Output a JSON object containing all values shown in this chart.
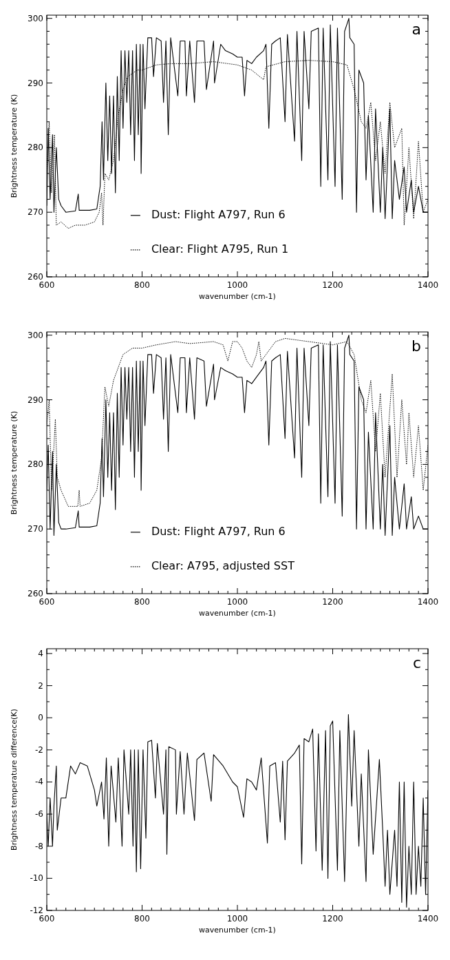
{
  "chart_data": [
    {
      "type": "line",
      "xlabel": "wavenumber (cm-1)",
      "ylabel": "Brightness temperature (K)",
      "annotations": [
        "a"
      ],
      "legend": "bottom",
      "xlim": [
        600,
        1400
      ],
      "ylim": [
        260,
        300.5
      ],
      "xticks": [
        600,
        {
          "value": 620,
          "label": null
        },
        {
          "value": 640,
          "label": null
        },
        {
          "value": 660,
          "label": null
        },
        {
          "value": 680,
          "label": null
        },
        {
          "value": 700,
          "label": null
        },
        {
          "value": 720,
          "label": null
        },
        {
          "value": 740,
          "label": null
        },
        {
          "value": 760,
          "label": null
        },
        {
          "value": 780,
          "label": null
        },
        800,
        {
          "value": 820,
          "label": null
        },
        {
          "value": 840,
          "label": null
        },
        {
          "value": 860,
          "label": null
        },
        {
          "value": 880,
          "label": null
        },
        {
          "value": 900,
          "label": null
        },
        {
          "value": 920,
          "label": null
        },
        {
          "value": 940,
          "label": null
        },
        {
          "value": 960,
          "label": null
        },
        {
          "value": 980,
          "label": null
        },
        1000,
        {
          "value": 1020,
          "label": null
        },
        {
          "value": 1040,
          "label": null
        },
        {
          "value": 1060,
          "label": null
        },
        {
          "value": 1080,
          "label": null
        },
        {
          "value": 1100,
          "label": null
        },
        {
          "value": 1120,
          "label": null
        },
        {
          "value": 1140,
          "label": null
        },
        {
          "value": 1160,
          "label": null
        },
        {
          "value": 1180,
          "label": null
        },
        1200,
        {
          "value": 1220,
          "label": null
        },
        {
          "value": 1240,
          "label": null
        },
        {
          "value": 1260,
          "label": null
        },
        {
          "value": 1280,
          "label": null
        },
        {
          "value": 1300,
          "label": null
        },
        {
          "value": 1320,
          "label": null
        },
        {
          "value": 1340,
          "label": null
        },
        {
          "value": 1360,
          "label": null
        },
        {
          "value": 1380,
          "label": null
        },
        1400
      ],
      "yticks": [
        260,
        {
          "value": 262,
          "label": null
        },
        {
          "value": 264,
          "label": null
        },
        {
          "value": 266,
          "label": null
        },
        {
          "value": 268,
          "label": null
        },
        270,
        {
          "value": 272,
          "label": null
        },
        {
          "value": 274,
          "label": null
        },
        {
          "value": 276,
          "label": null
        },
        {
          "value": 278,
          "label": null
        },
        280,
        {
          "value": 282,
          "label": null
        },
        {
          "value": 284,
          "label": null
        },
        {
          "value": 286,
          "label": null
        },
        {
          "value": 288,
          "label": null
        },
        290,
        {
          "value": 292,
          "label": null
        },
        {
          "value": 294,
          "label": null
        },
        {
          "value": 296,
          "label": null
        },
        {
          "value": 298,
          "label": null
        },
        300
      ],
      "series": [
        {
          "name": "Dust: Flight A797, Run 6",
          "color": "#000000",
          "line_style": "solid",
          "x": [
            600,
            603,
            607,
            612,
            615,
            620,
            625,
            630,
            640,
            660,
            666,
            668,
            690,
            705,
            712,
            716,
            719,
            724,
            728,
            732,
            736,
            740,
            744,
            748,
            752,
            756,
            760,
            764,
            768,
            772,
            776,
            780,
            784,
            788,
            792,
            796,
            798,
            802,
            806,
            812,
            820,
            824,
            830,
            840,
            845,
            850,
            855,
            860,
            875,
            880,
            890,
            893,
            900,
            910,
            915,
            930,
            935,
            950,
            952,
            965,
            975,
            990,
            1000,
            1010,
            1015,
            1020,
            1030,
            1040,
            1055,
            1060,
            1066,
            1072,
            1080,
            1090,
            1100,
            1105,
            1120,
            1125,
            1135,
            1140,
            1150,
            1155,
            1170,
            1175,
            1180,
            1190,
            1195,
            1205,
            1210,
            1220,
            1225,
            1234,
            1236,
            1245,
            1250,
            1255,
            1265,
            1270,
            1275,
            1285,
            1290,
            1300,
            1305,
            1310,
            1320,
            1325,
            1330,
            1340,
            1350,
            1355,
            1365,
            1370,
            1380,
            1390,
            1400
          ],
          "values": [
            271,
            283,
            272,
            282,
            270,
            280,
            272,
            271,
            270,
            270.2,
            272.8,
            270.3,
            270.3,
            270.5,
            274,
            284,
            275,
            290,
            278,
            288,
            276,
            288,
            273,
            291,
            278,
            295,
            283,
            295,
            287,
            295,
            282,
            295,
            278,
            296,
            282,
            296,
            276,
            296,
            286,
            297,
            297,
            291,
            297,
            296.5,
            287,
            296.5,
            282,
            297,
            288,
            296.5,
            296.5,
            288,
            296.5,
            287,
            296.5,
            296.5,
            289,
            296.5,
            290,
            296,
            295,
            294.5,
            294,
            294,
            288,
            293.5,
            293,
            294,
            295,
            296,
            283,
            296,
            296.5,
            297,
            284,
            297.5,
            281,
            298,
            278,
            298,
            286,
            298,
            298.5,
            274,
            298.5,
            275,
            299,
            274,
            298.5,
            272,
            298,
            300,
            297,
            296,
            270,
            292,
            290,
            275,
            285,
            270,
            286,
            270,
            280,
            269,
            286,
            269,
            278,
            272,
            277,
            270,
            275,
            270,
            274,
            270,
            270
          ]
        },
        {
          "name": "Clear: Flight A795, Run 1",
          "color": "#000000",
          "line_style": "dotted",
          "x": [
            600,
            605,
            610,
            616,
            620,
            630,
            645,
            660,
            680,
            700,
            710,
            715,
            718,
            722,
            730,
            740,
            750,
            760,
            770,
            790,
            800,
            830,
            860,
            900,
            950,
            980,
            1000,
            1030,
            1055,
            1060,
            1100,
            1150,
            1200,
            1230,
            1245,
            1260,
            1270,
            1280,
            1290,
            1300,
            1310,
            1320,
            1330,
            1345,
            1350,
            1360,
            1370,
            1380,
            1390,
            1400
          ],
          "values": [
            276,
            284,
            273,
            282,
            268,
            268.5,
            267.5,
            268,
            268,
            268.5,
            270,
            273,
            268,
            276,
            275,
            278,
            285,
            289,
            291,
            292,
            292,
            292.8,
            293,
            293,
            293.3,
            293,
            292.8,
            292,
            290.5,
            292.5,
            293.3,
            293.5,
            293.3,
            292.8,
            289,
            284,
            283,
            287,
            278,
            284,
            276,
            287,
            280,
            283,
            268,
            280,
            269,
            281,
            270,
            272
          ]
        }
      ]
    },
    {
      "type": "line",
      "xlabel": "wavenumber (cm-1)",
      "ylabel": "Brightness temperature (K)",
      "annotations": [
        "b"
      ],
      "legend": "bottom",
      "xlim": [
        600,
        1400
      ],
      "ylim": [
        260,
        300.5
      ],
      "xticks": [
        600,
        {
          "value": 620,
          "label": null
        },
        {
          "value": 640,
          "label": null
        },
        {
          "value": 660,
          "label": null
        },
        {
          "value": 680,
          "label": null
        },
        {
          "value": 700,
          "label": null
        },
        {
          "value": 720,
          "label": null
        },
        {
          "value": 740,
          "label": null
        },
        {
          "value": 760,
          "label": null
        },
        {
          "value": 780,
          "label": null
        },
        800,
        {
          "value": 820,
          "label": null
        },
        {
          "value": 840,
          "label": null
        },
        {
          "value": 860,
          "label": null
        },
        {
          "value": 880,
          "label": null
        },
        {
          "value": 900,
          "label": null
        },
        {
          "value": 920,
          "label": null
        },
        {
          "value": 940,
          "label": null
        },
        {
          "value": 960,
          "label": null
        },
        {
          "value": 980,
          "label": null
        },
        1000,
        {
          "value": 1020,
          "label": null
        },
        {
          "value": 1040,
          "label": null
        },
        {
          "value": 1060,
          "label": null
        },
        {
          "value": 1080,
          "label": null
        },
        {
          "value": 1100,
          "label": null
        },
        {
          "value": 1120,
          "label": null
        },
        {
          "value": 1140,
          "label": null
        },
        {
          "value": 1160,
          "label": null
        },
        {
          "value": 1180,
          "label": null
        },
        1200,
        {
          "value": 1220,
          "label": null
        },
        {
          "value": 1240,
          "label": null
        },
        {
          "value": 1260,
          "label": null
        },
        {
          "value": 1280,
          "label": null
        },
        {
          "value": 1300,
          "label": null
        },
        {
          "value": 1320,
          "label": null
        },
        {
          "value": 1340,
          "label": null
        },
        {
          "value": 1360,
          "label": null
        },
        {
          "value": 1380,
          "label": null
        },
        1400
      ],
      "yticks": [
        260,
        {
          "value": 262,
          "label": null
        },
        {
          "value": 264,
          "label": null
        },
        {
          "value": 266,
          "label": null
        },
        {
          "value": 268,
          "label": null
        },
        270,
        {
          "value": 272,
          "label": null
        },
        {
          "value": 274,
          "label": null
        },
        {
          "value": 276,
          "label": null
        },
        {
          "value": 278,
          "label": null
        },
        280,
        {
          "value": 282,
          "label": null
        },
        {
          "value": 284,
          "label": null
        },
        {
          "value": 286,
          "label": null
        },
        {
          "value": 288,
          "label": null
        },
        290,
        {
          "value": 292,
          "label": null
        },
        {
          "value": 294,
          "label": null
        },
        {
          "value": 296,
          "label": null
        },
        {
          "value": 298,
          "label": null
        },
        300
      ],
      "series": [
        {
          "name": "Dust: Flight A797, Run 6",
          "color": "#000000",
          "line_style": "solid",
          "x": [
            600,
            603,
            607,
            612,
            615,
            620,
            625,
            630,
            640,
            660,
            666,
            668,
            690,
            705,
            712,
            716,
            719,
            724,
            728,
            732,
            736,
            740,
            744,
            748,
            752,
            756,
            760,
            764,
            768,
            772,
            776,
            780,
            784,
            788,
            792,
            796,
            798,
            802,
            806,
            812,
            820,
            824,
            830,
            840,
            845,
            850,
            855,
            860,
            875,
            880,
            890,
            893,
            900,
            910,
            915,
            930,
            935,
            950,
            952,
            965,
            975,
            990,
            1000,
            1010,
            1015,
            1020,
            1030,
            1040,
            1055,
            1060,
            1066,
            1072,
            1080,
            1090,
            1100,
            1105,
            1120,
            1125,
            1135,
            1140,
            1150,
            1155,
            1170,
            1175,
            1180,
            1190,
            1195,
            1205,
            1210,
            1220,
            1225,
            1234,
            1236,
            1245,
            1250,
            1255,
            1265,
            1270,
            1275,
            1285,
            1290,
            1300,
            1305,
            1310,
            1320,
            1325,
            1330,
            1340,
            1350,
            1355,
            1365,
            1370,
            1380,
            1390,
            1400
          ],
          "values": [
            276,
            283,
            270,
            282,
            269,
            280,
            271,
            270,
            270,
            270.2,
            272.8,
            270.3,
            270.3,
            270.5,
            274,
            284,
            275,
            290,
            278,
            288,
            276,
            288,
            273,
            291,
            278,
            295,
            283,
            295,
            287,
            295,
            282,
            295,
            278,
            296,
            282,
            296,
            276,
            296,
            286,
            297,
            297,
            291,
            297,
            296.5,
            287,
            296.5,
            282,
            297,
            288,
            296.5,
            296.5,
            288,
            296.5,
            287,
            296.5,
            296,
            289,
            295.5,
            290,
            295,
            294.5,
            294,
            293.5,
            293.5,
            288,
            293,
            292.5,
            293.5,
            295,
            296,
            283,
            296,
            296.5,
            297,
            284,
            297.5,
            281,
            298,
            278,
            298,
            286,
            298,
            298.5,
            274,
            298.5,
            275,
            299,
            274,
            298.5,
            272,
            298,
            300,
            297,
            296,
            270,
            292,
            290,
            270,
            285,
            270,
            288,
            270,
            280,
            269,
            286,
            269,
            278,
            270,
            277,
            270,
            275,
            270,
            272,
            270,
            270
          ]
        },
        {
          "name": "Clear: A795, adjusted SST",
          "color": "#000000",
          "line_style": "dotted",
          "x": [
            600,
            605,
            610,
            618,
            622,
            630,
            645,
            665,
            668,
            670,
            690,
            705,
            715,
            722,
            730,
            740,
            750,
            760,
            780,
            800,
            830,
            870,
            900,
            950,
            970,
            980,
            990,
            1000,
            1010,
            1020,
            1030,
            1040,
            1045,
            1050,
            1060,
            1080,
            1100,
            1150,
            1200,
            1230,
            1245,
            1260,
            1270,
            1280,
            1290,
            1300,
            1310,
            1325,
            1335,
            1345,
            1355,
            1360,
            1370,
            1380,
            1390,
            1400
          ],
          "values": [
            286,
            290,
            276,
            287,
            278,
            276,
            273.5,
            273.5,
            276,
            273.5,
            274,
            276,
            281,
            292,
            289,
            293,
            295,
            297,
            298,
            298,
            298.5,
            299,
            298.7,
            299,
            298.5,
            296,
            299,
            299,
            298,
            296,
            295,
            297,
            299,
            296,
            297,
            299,
            299.5,
            299,
            298.5,
            299,
            297,
            290,
            288,
            293,
            282,
            291,
            278,
            294,
            278,
            290,
            280,
            288,
            278,
            286,
            276,
            283
          ]
        }
      ]
    },
    {
      "type": "line",
      "xlabel": "wavenumber (cm-1)",
      "ylabel": "Brightness temperature difference(K)",
      "annotations": [
        "c"
      ],
      "xlim": [
        600,
        1400
      ],
      "ylim": [
        -12,
        4.3
      ],
      "xticks": [
        600,
        {
          "value": 620,
          "label": null
        },
        {
          "value": 640,
          "label": null
        },
        {
          "value": 660,
          "label": null
        },
        {
          "value": 680,
          "label": null
        },
        {
          "value": 700,
          "label": null
        },
        {
          "value": 720,
          "label": null
        },
        {
          "value": 740,
          "label": null
        },
        {
          "value": 760,
          "label": null
        },
        {
          "value": 780,
          "label": null
        },
        800,
        {
          "value": 820,
          "label": null
        },
        {
          "value": 840,
          "label": null
        },
        {
          "value": 860,
          "label": null
        },
        {
          "value": 880,
          "label": null
        },
        {
          "value": 900,
          "label": null
        },
        {
          "value": 920,
          "label": null
        },
        {
          "value": 940,
          "label": null
        },
        {
          "value": 960,
          "label": null
        },
        {
          "value": 980,
          "label": null
        },
        1000,
        {
          "value": 1020,
          "label": null
        },
        {
          "value": 1040,
          "label": null
        },
        {
          "value": 1060,
          "label": null
        },
        {
          "value": 1080,
          "label": null
        },
        {
          "value": 1100,
          "label": null
        },
        {
          "value": 1120,
          "label": null
        },
        {
          "value": 1140,
          "label": null
        },
        {
          "value": 1160,
          "label": null
        },
        {
          "value": 1180,
          "label": null
        },
        1200,
        {
          "value": 1220,
          "label": null
        },
        {
          "value": 1240,
          "label": null
        },
        {
          "value": 1260,
          "label": null
        },
        {
          "value": 1280,
          "label": null
        },
        {
          "value": 1300,
          "label": null
        },
        {
          "value": 1320,
          "label": null
        },
        {
          "value": 1340,
          "label": null
        },
        {
          "value": 1360,
          "label": null
        },
        {
          "value": 1380,
          "label": null
        },
        1400
      ],
      "yticks": [
        -12,
        {
          "value": -11,
          "label": null
        },
        -10,
        {
          "value": -9,
          "label": null
        },
        -8,
        {
          "value": -7,
          "label": null
        },
        -6,
        {
          "value": -5,
          "label": null
        },
        -4,
        {
          "value": -3,
          "label": null
        },
        -2,
        {
          "value": -1,
          "label": null
        },
        0,
        {
          "value": 1,
          "label": null
        },
        2,
        {
          "value": 3,
          "label": null
        },
        4
      ],
      "series": [
        {
          "color": "#000000",
          "line_style": "solid",
          "x": [
            600,
            603,
            607,
            612,
            615,
            620,
            622,
            630,
            640,
            650,
            660,
            670,
            685,
            700,
            705,
            715,
            720,
            725,
            730,
            735,
            745,
            750,
            758,
            762,
            772,
            776,
            781,
            784,
            788,
            792,
            797,
            802,
            808,
            812,
            820,
            828,
            832,
            845,
            850,
            852,
            856,
            870,
            872,
            880,
            888,
            895,
            910,
            915,
            930,
            945,
            950,
            970,
            990,
            1000,
            1013,
            1020,
            1030,
            1040,
            1050,
            1063,
            1068,
            1080,
            1090,
            1095,
            1100,
            1105,
            1120,
            1130,
            1135,
            1140,
            1150,
            1158,
            1165,
            1170,
            1178,
            1185,
            1190,
            1195,
            1200,
            1210,
            1215,
            1225,
            1233,
            1240,
            1245,
            1255,
            1260,
            1270,
            1275,
            1285,
            1298,
            1305,
            1310,
            1315,
            1320,
            1330,
            1335,
            1340,
            1345,
            1350,
            1355,
            1360,
            1365,
            1370,
            1375,
            1380,
            1385,
            1390,
            1395,
            1400
          ],
          "values": [
            -6,
            -8,
            -5,
            -8,
            -5.5,
            -3,
            -7,
            -5,
            -5,
            -3,
            -3.5,
            -2.8,
            -3,
            -4.5,
            -5.5,
            -4,
            -6.3,
            -2.5,
            -8,
            -3,
            -6.5,
            -2.5,
            -8,
            -2,
            -6,
            -2,
            -8,
            -2,
            -9.6,
            -2,
            -9.4,
            -2,
            -7.5,
            -1.5,
            -1.4,
            -5,
            -1.6,
            -6,
            -2,
            -8.5,
            -1.8,
            -2,
            -6,
            -2.1,
            -6,
            -2.2,
            -6.4,
            -2.6,
            -2.2,
            -5.2,
            -2.3,
            -3,
            -4,
            -4.3,
            -6.2,
            -3.8,
            -4,
            -4.5,
            -2.5,
            -7.8,
            -3,
            -2.8,
            -6.5,
            -2.7,
            -7.6,
            -2.7,
            -2.2,
            -1.7,
            -9.1,
            -1.3,
            -1.5,
            -0.7,
            -8.3,
            -1,
            -9.5,
            -0.8,
            -10,
            -0.5,
            -0.2,
            -9.5,
            -0.8,
            -10.2,
            0.2,
            -5.5,
            -0.8,
            -8,
            -3.5,
            -10.2,
            -2,
            -8.5,
            -2.6,
            -7,
            -10.5,
            -7,
            -11,
            -7,
            -10.5,
            -4,
            -11.5,
            -4,
            -11.8,
            -8,
            -11,
            -4,
            -11,
            -8,
            -10.5,
            -5,
            -11,
            -4.5
          ]
        }
      ]
    }
  ]
}
